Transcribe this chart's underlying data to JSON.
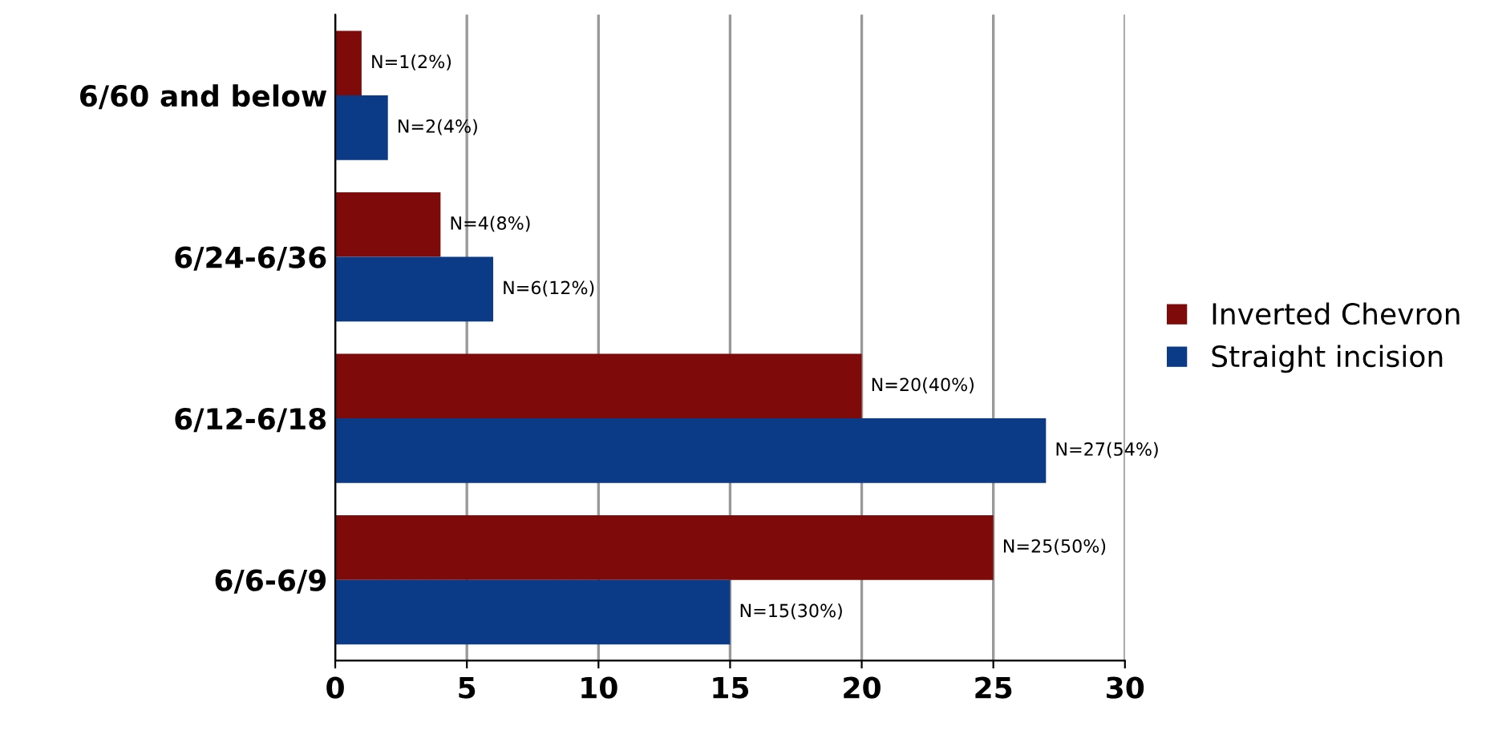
{
  "chart_data": {
    "type": "bar",
    "orientation": "horizontal",
    "categories": [
      "6/60 and below",
      "6/24-6/36",
      "6/12-6/18",
      "6/6-6/9"
    ],
    "series": [
      {
        "name": "Inverted Chevron",
        "color": "#7f0a0a",
        "values": [
          1,
          4,
          20,
          25
        ],
        "value_labels": [
          "N=1(2%)",
          "N=4(8%)",
          "N=20(40%)",
          "N=25(50%)"
        ]
      },
      {
        "name": "Straight incision",
        "color": "#0b3a86",
        "values": [
          2,
          6,
          27,
          15
        ],
        "value_labels": [
          "N=2(4%)",
          "N=6(12%)",
          "N=27(54%)",
          "N=15(30%)"
        ]
      }
    ],
    "xlim": [
      0,
      30
    ],
    "xticks": [
      0,
      5,
      10,
      15,
      20,
      25,
      30
    ],
    "grid": "x",
    "legend": "right"
  }
}
